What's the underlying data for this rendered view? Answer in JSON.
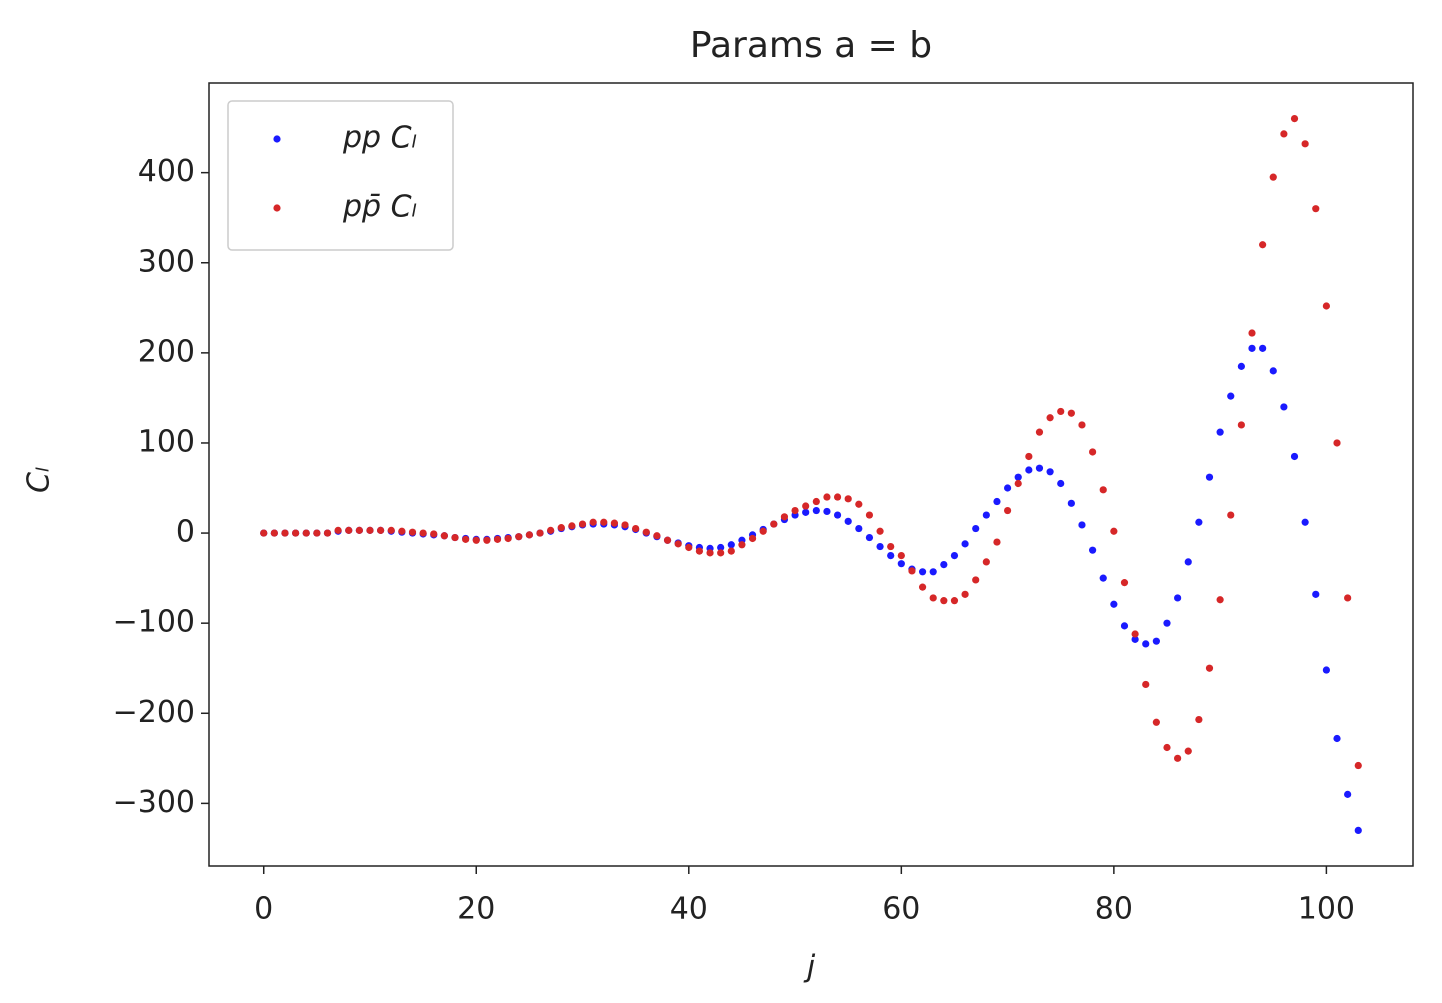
{
  "chart_data": {
    "type": "scatter",
    "title": "Params a = b",
    "xlabel": "j",
    "ylabel": "Cₗ",
    "x": [
      0,
      1,
      2,
      3,
      4,
      5,
      6,
      7,
      8,
      9,
      10,
      11,
      12,
      13,
      14,
      15,
      16,
      17,
      18,
      19,
      20,
      21,
      22,
      23,
      24,
      25,
      26,
      27,
      28,
      29,
      30,
      31,
      32,
      33,
      34,
      35,
      36,
      37,
      38,
      39,
      40,
      41,
      42,
      43,
      44,
      45,
      46,
      47,
      48,
      49,
      50,
      51,
      52,
      53,
      54,
      55,
      56,
      57,
      58,
      59,
      60,
      61,
      62,
      63,
      64,
      65,
      66,
      67,
      68,
      69,
      70,
      71,
      72,
      73,
      74,
      75,
      76,
      77,
      78,
      79,
      80,
      81,
      82,
      83,
      84,
      85,
      86,
      87,
      88,
      89,
      90,
      91,
      92,
      93,
      94,
      95,
      96,
      97,
      98,
      99,
      100,
      101,
      102,
      103
    ],
    "series": [
      {
        "name": "pp Cₗ",
        "color": "#1a1aff",
        "values": [
          0,
          0,
          0,
          0,
          0,
          0,
          0,
          2,
          3,
          3,
          3,
          3,
          2,
          1,
          0,
          -1,
          -2,
          -3,
          -5,
          -6,
          -7,
          -7,
          -6,
          -5,
          -4,
          -2,
          0,
          2,
          5,
          7,
          9,
          10,
          10,
          9,
          7,
          4,
          0,
          -4,
          -8,
          -11,
          -14,
          -16,
          -17,
          -16,
          -13,
          -8,
          -2,
          4,
          10,
          15,
          20,
          23,
          25,
          24,
          20,
          13,
          5,
          -5,
          -15,
          -25,
          -34,
          -40,
          -43,
          -43,
          -35,
          -25,
          -12,
          5,
          20,
          35,
          50,
          62,
          70,
          72,
          68,
          55,
          33,
          9,
          -19,
          -50,
          -79,
          -103,
          -118,
          -123,
          -120,
          -100,
          -72,
          -32,
          12,
          62,
          112,
          152,
          185,
          205,
          205,
          180,
          140,
          85,
          12,
          -68,
          -152,
          -228,
          -290,
          -330
        ]
      },
      {
        "name": "pp̄ Cₗ",
        "color": "#d62728",
        "values": [
          0,
          0,
          0,
          0,
          0,
          0,
          0,
          3,
          3,
          3,
          3,
          3,
          3,
          2,
          1,
          0,
          -1,
          -3,
          -5,
          -7,
          -8,
          -8,
          -7,
          -6,
          -4,
          -2,
          0,
          3,
          6,
          8,
          10,
          12,
          12,
          11,
          9,
          5,
          1,
          -3,
          -8,
          -12,
          -16,
          -20,
          -22,
          -22,
          -20,
          -13,
          -6,
          2,
          10,
          18,
          25,
          30,
          35,
          40,
          40,
          38,
          32,
          20,
          2,
          -15,
          -25,
          -42,
          -60,
          -72,
          -75,
          -75,
          -68,
          -52,
          -32,
          -10,
          25,
          55,
          85,
          112,
          128,
          135,
          133,
          120,
          90,
          48,
          2,
          -55,
          -112,
          -168,
          -210,
          -238,
          -250,
          -242,
          -207,
          -150,
          -74,
          20,
          120,
          222,
          320,
          395,
          443,
          460,
          432,
          360,
          252,
          100,
          -72,
          -258
        ]
      }
    ],
    "xlim": [
      -5.15,
      108.15
    ],
    "ylim": [
      -369.5,
      499.5
    ],
    "xticks": [
      0,
      20,
      40,
      60,
      80,
      100
    ],
    "yticks": [
      {
        "value": -300,
        "label": "−300"
      },
      {
        "value": -200,
        "label": "−200"
      },
      {
        "value": -100,
        "label": "−100"
      },
      0,
      100,
      200,
      300,
      400
    ],
    "legend": "upper left"
  }
}
